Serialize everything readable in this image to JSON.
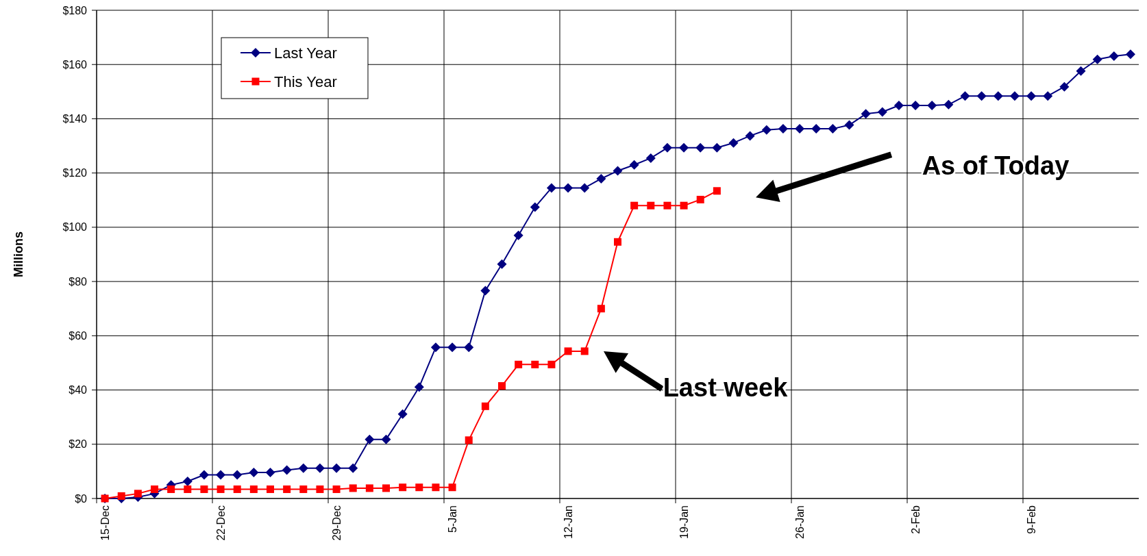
{
  "chart_data": {
    "type": "line",
    "ylabel": "Millions",
    "categories": [
      "15-Dec",
      null,
      null,
      null,
      null,
      null,
      null,
      "22-Dec",
      null,
      null,
      null,
      null,
      null,
      null,
      "29-Dec",
      null,
      null,
      null,
      null,
      null,
      null,
      "5-Jan",
      null,
      null,
      null,
      null,
      null,
      null,
      "12-Jan",
      null,
      null,
      null,
      null,
      null,
      null,
      "19-Jan",
      null,
      null,
      null,
      null,
      null,
      null,
      "26-Jan",
      null,
      null,
      null,
      null,
      null,
      null,
      "2-Feb",
      null,
      null,
      null,
      null,
      null,
      null,
      "9-Feb",
      null,
      null,
      null,
      null,
      null,
      null
    ],
    "series": [
      {
        "name": "Last Year",
        "color": "#000080",
        "marker": "diamond",
        "values": [
          0,
          0,
          0.5,
          1.8,
          5,
          6.3,
          8.7,
          8.7,
          8.7,
          9.6,
          9.6,
          10.5,
          11.2,
          11.2,
          11.2,
          11.2,
          21.8,
          21.8,
          31.1,
          41.1,
          55.7,
          55.7,
          55.7,
          76.6,
          86.4,
          97,
          107.4,
          114.5,
          114.5,
          114.5,
          117.9,
          120.8,
          123,
          125.5,
          129.3,
          129.3,
          129.3,
          129.3,
          131.1,
          133.7,
          135.9,
          136.3,
          136.3,
          136.3,
          136.3,
          137.7,
          141.8,
          142.5,
          144.9,
          144.9,
          144.9,
          145.2,
          148.4,
          148.4,
          148.4,
          148.4,
          148.4,
          148.4,
          151.8,
          157.6,
          161.9,
          163.1,
          163.8
        ]
      },
      {
        "name": "This Year",
        "color": "#ff0000",
        "marker": "square",
        "values": [
          0,
          0.9,
          1.8,
          3.4,
          3.4,
          3.4,
          3.4,
          3.4,
          3.4,
          3.4,
          3.4,
          3.4,
          3.4,
          3.4,
          3.4,
          3.8,
          3.8,
          3.8,
          4.1,
          4.1,
          4.1,
          4.1,
          21.5,
          34,
          41.5,
          49.4,
          49.4,
          49.4,
          54.3,
          54.3,
          70,
          94.6,
          108,
          108,
          108,
          108,
          110.2,
          113.4,
          null,
          null,
          null,
          null,
          null,
          null,
          null,
          null,
          null,
          null,
          null,
          null,
          null,
          null,
          null,
          null,
          null,
          null,
          null,
          null,
          null,
          null,
          null,
          null,
          null
        ]
      }
    ],
    "ylim": [
      0,
      180
    ],
    "yticks": [
      {
        "value": 0,
        "label": "$0"
      },
      {
        "value": 20,
        "label": "$20"
      },
      {
        "value": 40,
        "label": "$40"
      },
      {
        "value": 60,
        "label": "$60"
      },
      {
        "value": 80,
        "label": "$80"
      },
      {
        "value": 100,
        "label": "$100"
      },
      {
        "value": 120,
        "label": "$120"
      },
      {
        "value": 140,
        "label": "$140"
      },
      {
        "value": 160,
        "label": "$160"
      },
      {
        "value": 180,
        "label": "$180"
      }
    ],
    "grid": true,
    "legend": "top left",
    "annotations": [
      "As of Today",
      "Last week"
    ]
  }
}
